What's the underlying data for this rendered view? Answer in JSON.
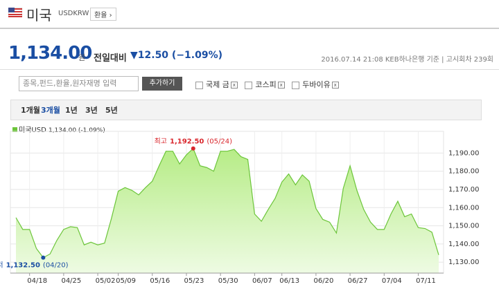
{
  "header": {
    "title": "미국",
    "code": "USDKRW",
    "button": "환율 ›"
  },
  "quote": {
    "price": "1,134.00",
    "unit": "원",
    "change_label": "전일대비",
    "change": "▼12.50 (−1.09%)",
    "timestamp": "2016.07.14 21:08",
    "source": "KEB하나은행 기준",
    "round": "고시회차 239회"
  },
  "search": {
    "placeholder": "종목,펀드,환율,원자재명 입력",
    "button": "추가하기",
    "compare": [
      "국제 금",
      "코스피",
      "두바이유"
    ]
  },
  "tabs": {
    "items": [
      "1개월",
      "3개월",
      "1년",
      "3년",
      "5년"
    ],
    "selected": 1
  },
  "chart_data": {
    "type": "area",
    "legend_note": "1,134.00 (-1.09%)",
    "categories": [
      null,
      null,
      "04/18",
      null,
      null,
      null,
      null,
      "04/25",
      null,
      null,
      null,
      null,
      "05/02",
      null,
      null,
      "05/09",
      null,
      null,
      null,
      null,
      "05/16",
      null,
      null,
      null,
      null,
      "05/23",
      null,
      null,
      null,
      null,
      "05/30",
      null,
      null,
      null,
      null,
      "06/07",
      null,
      null,
      null,
      "06/13",
      null,
      null,
      null,
      null,
      "06/20",
      null,
      null,
      null,
      null,
      "06/27",
      null,
      null,
      null,
      null,
      "07/04",
      null,
      null,
      null,
      null,
      "07/11",
      null,
      null,
      null
    ],
    "series": [
      {
        "name": "미국USD",
        "color": "#6cc53a",
        "values": [
          1154.5,
          1148,
          1148,
          1137.5,
          1132.5,
          1134.5,
          1142,
          1148,
          1149.5,
          1149,
          1139.5,
          1141,
          1139.5,
          1140.5,
          1154,
          1169,
          1171,
          1169.5,
          1167,
          1171,
          1174.5,
          1183,
          1191,
          1191,
          1184,
          1189,
          1192.5,
          1183,
          1182,
          1180,
          1191,
          1191,
          1192,
          1188,
          1186.5,
          1156.5,
          1152.5,
          1159,
          1165,
          1174,
          1178.5,
          1172.5,
          1178,
          1174.5,
          1159.5,
          1153.5,
          1152,
          1146,
          1170.5,
          1183,
          1169.5,
          1159,
          1152,
          1148,
          1148,
          1156.5,
          1163.5,
          1155,
          1156.5,
          1149,
          1148.5,
          1146.5,
          1134
        ]
      }
    ],
    "ylim": [
      1124,
      1200
    ],
    "yticks": [
      {
        "value": 1130,
        "label": "1,130.00"
      },
      {
        "value": 1140,
        "label": "1,140.00"
      },
      {
        "value": 1150,
        "label": "1,150.00"
      },
      {
        "value": 1160,
        "label": "1,160.00"
      },
      {
        "value": 1170,
        "label": "1,170.00"
      },
      {
        "value": 1180,
        "label": "1,180.00"
      },
      {
        "value": 1190,
        "label": "1,190.00"
      }
    ],
    "grid": true,
    "annotations": [
      {
        "label": "최고",
        "value": 1192.5,
        "value_label": "1,192.50",
        "date": "(05/24)",
        "color": "#d9262c"
      },
      {
        "label": "최저",
        "value": 1132.5,
        "value_label": "1,132.50",
        "date": "(04/20)",
        "color": "#1a4ea3"
      }
    ]
  }
}
